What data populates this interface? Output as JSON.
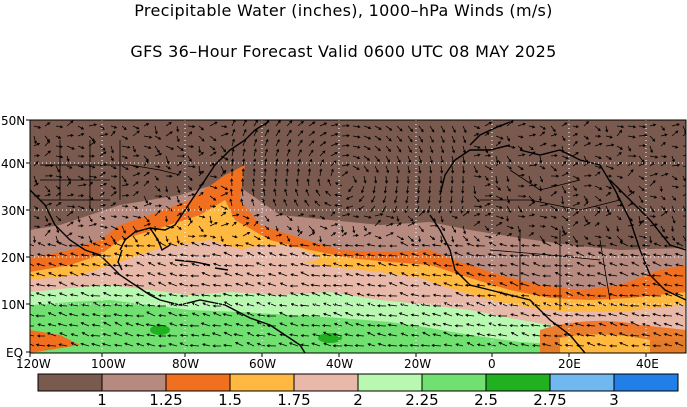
{
  "title": "Precipitable Water (inches), 1000–hPa Winds (m/s)",
  "subtitle": "GFS 36–Hour Forecast Valid 0600 UTC 08 MAY 2025",
  "lat_labels": [
    "50N",
    "40N",
    "30N",
    "20N",
    "10N",
    "EQ"
  ],
  "lon_labels": [
    "120W",
    "100W",
    "80W",
    "60W",
    "40W",
    "20W",
    "0",
    "20E",
    "40E"
  ],
  "colorbar": {
    "colors": [
      "#7a5a4e",
      "#b78a80",
      "#f07020",
      "#ffb840",
      "#e8b8a8",
      "#b8f8b0",
      "#70e070",
      "#20b020",
      "#70b8f0",
      "#2080e8"
    ],
    "labels": [
      "1",
      "1.25",
      "1.5",
      "1.75",
      "2",
      "2.25",
      "2.5",
      "2.75",
      "3"
    ]
  },
  "colors": {
    "dry": "#7a5a4e",
    "light_brown": "#b78a80",
    "orange": "#f07020",
    "yellow_orange": "#ffb840",
    "pink": "#e8b8a8",
    "light_green": "#b8f8b0",
    "green": "#70e070",
    "dark_green": "#20b020"
  }
}
